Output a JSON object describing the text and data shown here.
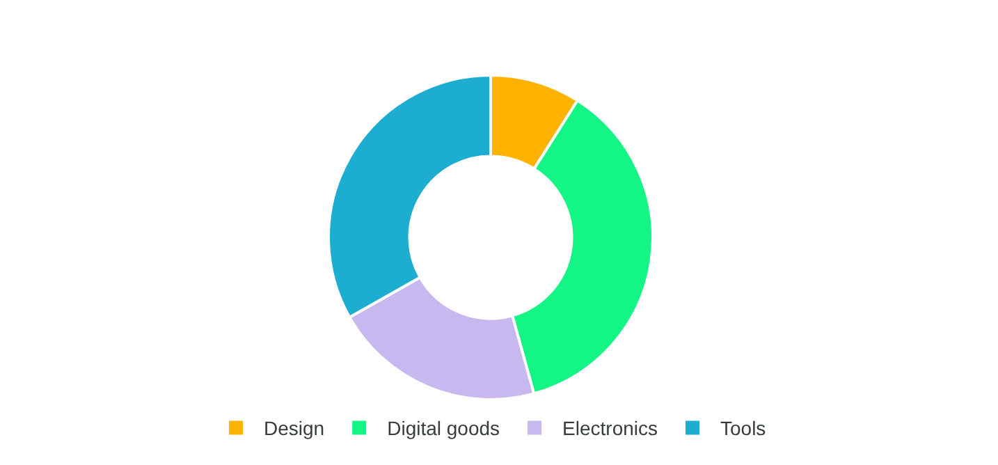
{
  "chart_data": {
    "type": "donut",
    "categories": [
      "Design",
      "Digital goods",
      "Electronics",
      "Tools"
    ],
    "values": [
      9,
      36.7,
      21.1,
      33.2
    ],
    "colors": [
      "#ffb300",
      "#13f584",
      "#c7b8f0",
      "#1cadd1"
    ],
    "legend": "bottom"
  }
}
